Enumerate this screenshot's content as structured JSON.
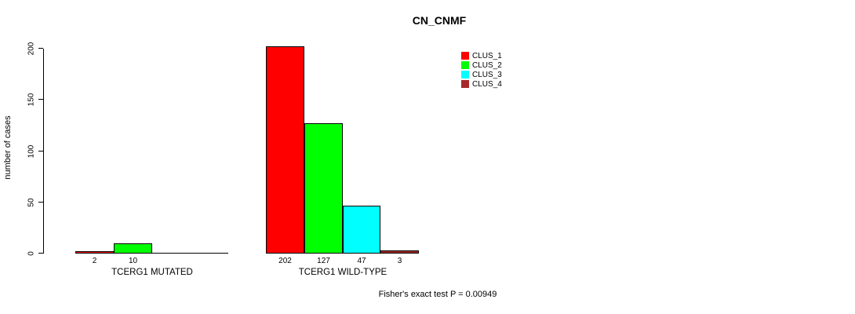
{
  "chart_data": {
    "type": "bar",
    "title": "CN_CNMF",
    "xlabel": "",
    "ylabel": "number of cases",
    "ylim": [
      0,
      200
    ],
    "yticks": [
      0,
      50,
      100,
      150,
      200
    ],
    "grid": false,
    "legend_position": "top-right",
    "categories": [
      "TCERG1 MUTATED",
      "TCERG1 WILD-TYPE"
    ],
    "series": [
      {
        "name": "CLUS_1",
        "color": "#FF0000",
        "values": [
          2,
          202
        ]
      },
      {
        "name": "CLUS_2",
        "color": "#00FF00",
        "values": [
          10,
          127
        ]
      },
      {
        "name": "CLUS_3",
        "color": "#00FFFF",
        "values": [
          0,
          47
        ]
      },
      {
        "name": "CLUS_4",
        "color": "#A52A2A",
        "values": [
          0,
          3
        ]
      }
    ],
    "bar_label_rule": "value shown under each bar with count > 0",
    "annotation": "Fisher's exact test P = 0.00949"
  }
}
